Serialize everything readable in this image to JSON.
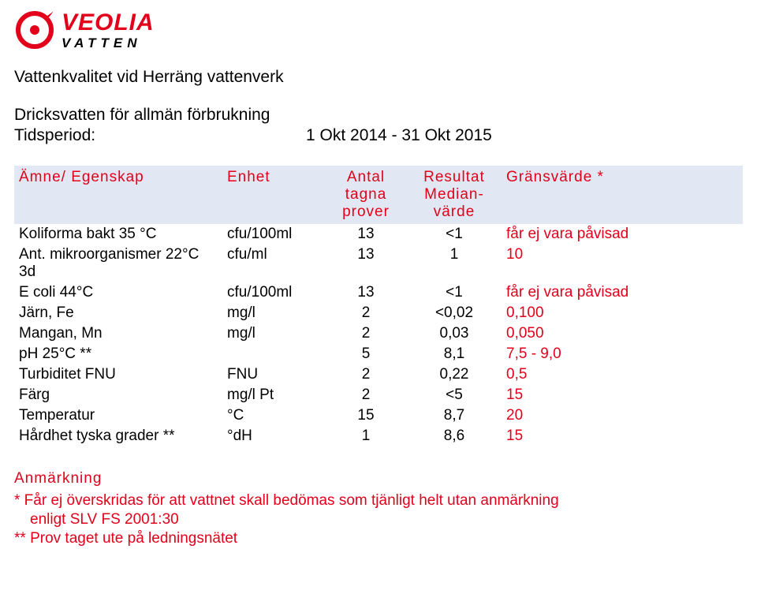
{
  "brand": {
    "name_line1": "VEOLIA",
    "name_line2": "VATTEN",
    "color_red": "#e2001a",
    "color_black": "#000000"
  },
  "title": "Vattenkvalitet vid Herräng vattenverk",
  "subtitle": "Dricksvatten för allmän förbrukning",
  "period_label": "Tidsperiod:",
  "period_value": "1 Okt 2014 - 31 Okt 2015",
  "table": {
    "header_bg": "#e2e7f4",
    "header_color": "#e2001a",
    "headers": {
      "param": "Ämne/ Egenskap",
      "unit": "Enhet",
      "count_l1": "Antal",
      "count_l2": "tagna",
      "count_l3": "prover",
      "result_l1": "Resultat",
      "result_l2": "Median-",
      "result_l3": "värde",
      "limit": "Gränsvärde *"
    },
    "rows": [
      {
        "param": "Koliforma bakt 35 °C",
        "unit": "cfu/100ml",
        "count": "13",
        "result": "<1",
        "limit": "får ej vara påvisad"
      },
      {
        "param": "Ant. mikroorganismer 22°C 3d",
        "unit": "cfu/ml",
        "count": "13",
        "result": "1",
        "limit": "10"
      },
      {
        "param": "E coli 44°C",
        "unit": "cfu/100ml",
        "count": "13",
        "result": "<1",
        "limit": "får ej vara påvisad"
      },
      {
        "param": "Järn, Fe",
        "unit": "mg/l",
        "count": "2",
        "result": "<0,02",
        "limit": "0,100"
      },
      {
        "param": "Mangan, Mn",
        "unit": "mg/l",
        "count": "2",
        "result": "0,03",
        "limit": "0,050"
      },
      {
        "param": "pH 25°C **",
        "unit": "",
        "count": "5",
        "result": "8,1",
        "limit": "7,5 - 9,0"
      },
      {
        "param": "Turbiditet FNU",
        "unit": "FNU",
        "count": "2",
        "result": "0,22",
        "limit": "0,5"
      },
      {
        "param": "Färg",
        "unit": "mg/l Pt",
        "count": "2",
        "result": "<5",
        "limit": "15"
      },
      {
        "param": "Temperatur",
        "unit": "°C",
        "count": "15",
        "result": "8,7",
        "limit": "20"
      },
      {
        "param": "Hårdhet tyska grader **",
        "unit": "°dH",
        "count": "1",
        "result": "8,6",
        "limit": "15"
      }
    ]
  },
  "notes": {
    "heading": "Anmärkning",
    "line1": "* Får ej överskridas för att vattnet skall bedömas som tjänligt helt utan anmärkning",
    "line1b": "enligt SLV FS 2001:30",
    "line2": "** Prov taget ute på ledningsnätet"
  },
  "colors": {
    "page_bg": "#ffffff",
    "text_black": "#000000",
    "text_red": "#e2001a"
  }
}
